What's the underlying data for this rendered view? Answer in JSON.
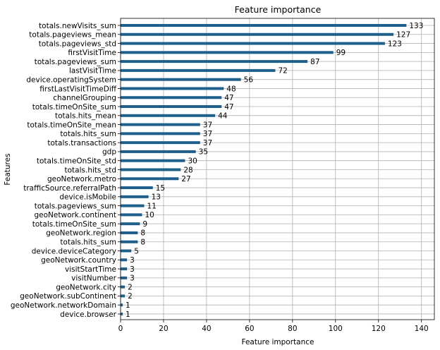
{
  "chart_data": {
    "type": "bar",
    "orientation": "horizontal",
    "title": "Feature importance",
    "xlabel": "Feature importance",
    "ylabel": "Features",
    "xlim": [
      0,
      146
    ],
    "xticks": [
      0,
      20,
      40,
      60,
      80,
      100,
      120,
      140
    ],
    "grid": true,
    "bar_color": "#1f5f8b",
    "categories": [
      "totals.newVisits_sum",
      "totals.pageviews_mean",
      "totals.pageviews_std",
      "firstVisitTime",
      "totals.pageviews_sum",
      "lastVisitTime",
      "device.operatingSystem",
      "firstLastVisitTimeDiff",
      "channelGrouping",
      "totals.timeOnSite_sum",
      "totals.hits_mean",
      "totals.timeOnSite_mean",
      "totals.hits_sum",
      "totals.transactions",
      "gdp",
      "totals.timeOnSite_std",
      "totals.hits_std",
      "geoNetwork.metro",
      "trafficSource.referralPath",
      "device.isMobile",
      "totals.pageviews_sum",
      "geoNetwork.continent",
      "totals.timeOnSite_sum",
      "geoNetwork.region",
      "totals.hits_sum",
      "device.deviceCategory",
      "geoNetwork.country",
      "visitStartTime",
      "visitNumber",
      "geoNetwork.city",
      "geoNetwork.subContinent",
      "geoNetwork.networkDomain",
      "device.browser"
    ],
    "values": [
      133,
      127,
      123,
      99,
      87,
      72,
      56,
      48,
      47,
      47,
      44,
      37,
      37,
      37,
      35,
      30,
      28,
      27,
      15,
      13,
      11,
      10,
      9,
      8,
      8,
      5,
      3,
      3,
      3,
      2,
      2,
      1,
      1
    ]
  }
}
